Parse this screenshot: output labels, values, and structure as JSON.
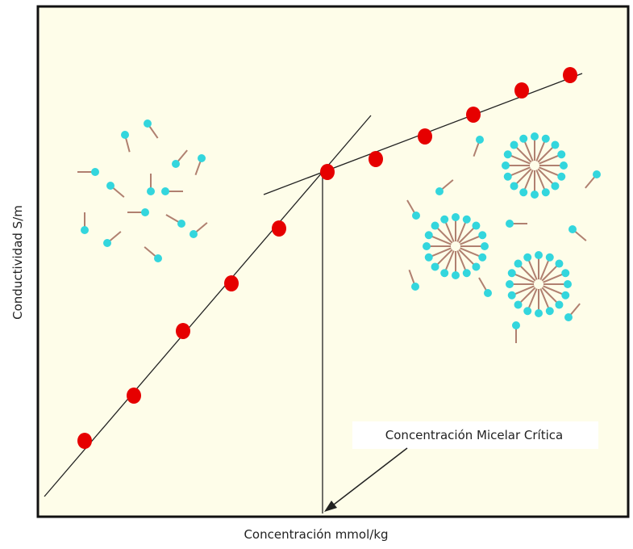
{
  "axes": {
    "x_label": "Concentración mmol/kg",
    "y_label": "Conductividad  S/m"
  },
  "annotation": "Concentración Micelar Crítica"
}
